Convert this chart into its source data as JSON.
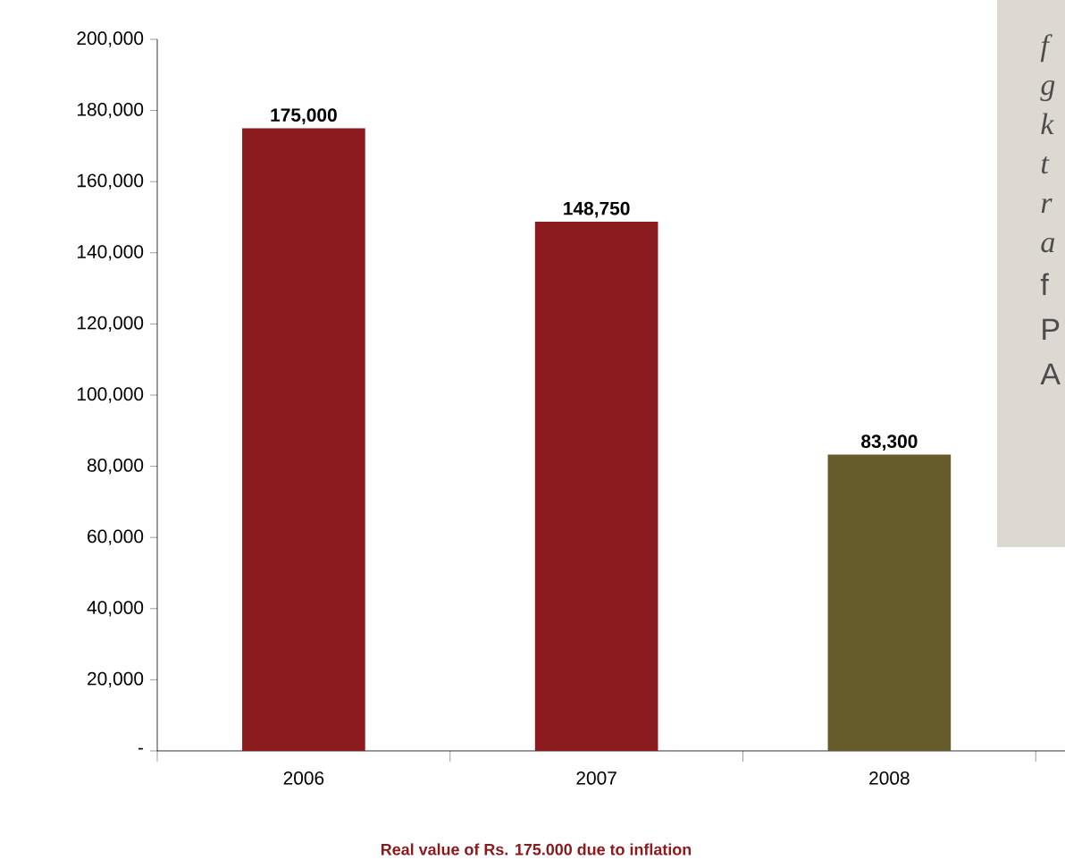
{
  "chart_data": {
    "type": "bar",
    "categories": [
      "2006",
      "2007",
      "2008"
    ],
    "values": [
      175000,
      148750,
      83300
    ],
    "colors": [
      "#8b1a1e",
      "#8b1a1e",
      "#655b2b"
    ],
    "value_labels": [
      "175,000",
      "148,750",
      "83,300"
    ],
    "ylim": [
      0,
      200000
    ],
    "yticks": [
      {
        "value": 0,
        "label": "-"
      },
      {
        "value": 20000,
        "label": "20,000"
      },
      {
        "value": 40000,
        "label": "40,000"
      },
      {
        "value": 60000,
        "label": "60,000"
      },
      {
        "value": 80000,
        "label": "80,000"
      },
      {
        "value": 100000,
        "label": "100,000"
      },
      {
        "value": 120000,
        "label": "120,000"
      },
      {
        "value": 140000,
        "label": "140,000"
      },
      {
        "value": 160000,
        "label": "160,000"
      },
      {
        "value": 180000,
        "label": "180,000"
      },
      {
        "value": 200000,
        "label": "200,000"
      }
    ],
    "grid": false,
    "annotations": [
      "Real value of Rs. 175.000 due to inflation",
      "f",
      "g",
      "k",
      "t",
      "r",
      "a",
      "f",
      "P",
      "A"
    ]
  }
}
